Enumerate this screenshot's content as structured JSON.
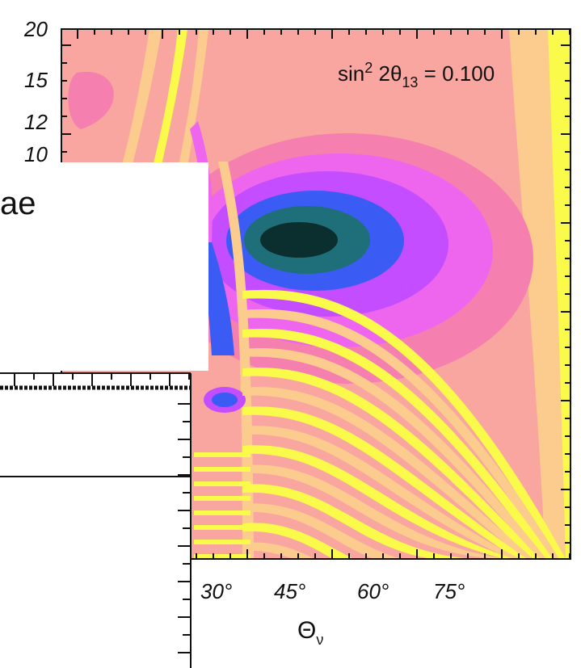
{
  "chart_data": {
    "type": "heatmap",
    "title": "",
    "annotation": {
      "text": "sin",
      "sup": "2",
      "mid": " 2θ",
      "sub": "13",
      "tail": " = 0.100"
    },
    "xlabel": {
      "text": "Θ",
      "sub": "ν"
    },
    "ylabel": "",
    "x_ticks": [
      "30°",
      "45°",
      "60°",
      "75°"
    ],
    "y_ticks": [
      "20",
      "15",
      "12",
      "10"
    ],
    "colors": {
      "light_pink": "#f9a6a0",
      "peach": "#fccb8e",
      "yellow": "#fafa4a",
      "pink": "#f57fae",
      "magenta": "#ee66ee",
      "purple": "#c44dff",
      "blue": "#3a5cf5",
      "teal": "#1e6f7a",
      "dark": "#0b2e2e"
    }
  },
  "overlay": {
    "text": "ae"
  }
}
